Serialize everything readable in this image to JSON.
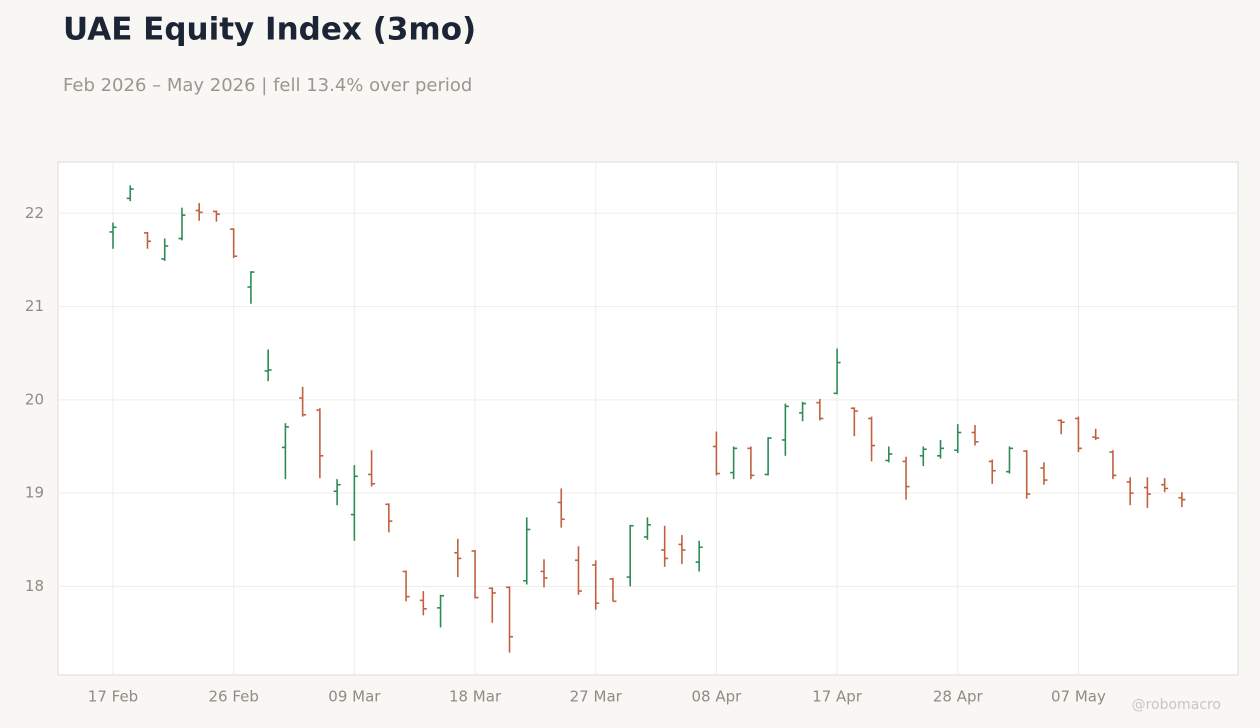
{
  "chart_data": {
    "type": "ohlc",
    "title": "UAE Equity Index (3mo)",
    "subtitle": "Feb 2026 – May 2026 | fell 13.4% over period",
    "watermark": "@robomacro",
    "up_color": "#2e8b57",
    "down_color": "#c0623f",
    "grid": true,
    "categories": [
      "17 Feb",
      null,
      null,
      null,
      null,
      null,
      null,
      "26 Feb",
      null,
      null,
      null,
      null,
      null,
      null,
      "09 Mar",
      null,
      null,
      null,
      null,
      null,
      null,
      "18 Mar",
      null,
      null,
      null,
      null,
      null,
      null,
      "27 Mar",
      null,
      null,
      null,
      null,
      null,
      null,
      "08 Apr",
      null,
      null,
      null,
      null,
      null,
      null,
      "17 Apr",
      null,
      null,
      null,
      null,
      null,
      null,
      "28 Apr",
      null,
      null,
      null,
      null,
      null,
      null,
      "07 May",
      null,
      null,
      null,
      null,
      null,
      null
    ],
    "open": [
      21.8,
      22.16,
      21.79,
      21.51,
      21.73,
      22.03,
      22.02,
      21.83,
      21.21,
      20.31,
      19.49,
      20.02,
      19.89,
      19.02,
      18.77,
      19.2,
      18.88,
      18.16,
      17.85,
      17.77,
      18.36,
      18.38,
      17.98,
      17.99,
      18.06,
      18.16,
      18.9,
      18.28,
      18.23,
      18.08,
      18.1,
      18.53,
      18.39,
      18.45,
      18.26,
      19.5,
      19.22,
      19.48,
      19.2,
      19.57,
      19.86,
      19.97,
      20.07,
      19.91,
      19.8,
      19.35,
      19.34,
      19.4,
      19.4,
      19.46,
      19.65,
      19.34,
      19.23,
      19.45,
      19.27,
      19.78,
      19.8,
      19.6,
      19.44,
      19.12,
      19.06,
      19.09,
      18.95
    ],
    "high": [
      21.9,
      22.3,
      21.8,
      21.73,
      22.06,
      22.11,
      22.03,
      21.84,
      21.38,
      20.54,
      19.75,
      20.14,
      19.91,
      19.15,
      19.3,
      19.46,
      18.89,
      18.17,
      17.95,
      17.91,
      18.51,
      18.39,
      17.99,
      18.0,
      18.74,
      18.29,
      19.05,
      18.43,
      18.28,
      18.09,
      18.66,
      18.74,
      18.65,
      18.55,
      18.49,
      19.66,
      19.5,
      19.5,
      19.6,
      19.96,
      19.98,
      20.01,
      20.55,
      19.92,
      19.82,
      19.5,
      19.39,
      19.5,
      19.57,
      19.74,
      19.73,
      19.36,
      19.5,
      19.46,
      19.33,
      19.79,
      19.82,
      19.69,
      19.46,
      19.17,
      19.17,
      19.16,
      19.01
    ],
    "low": [
      21.62,
      22.13,
      21.62,
      21.49,
      21.71,
      21.92,
      21.91,
      21.52,
      21.03,
      20.2,
      19.15,
      19.82,
      19.16,
      18.87,
      18.49,
      19.07,
      18.58,
      17.84,
      17.69,
      17.56,
      18.1,
      17.87,
      17.61,
      17.29,
      18.02,
      17.99,
      18.63,
      17.91,
      17.75,
      17.84,
      18.0,
      18.5,
      18.21,
      18.24,
      18.16,
      19.19,
      19.15,
      19.15,
      19.19,
      19.4,
      19.77,
      19.78,
      20.06,
      19.61,
      19.34,
      19.33,
      18.93,
      19.29,
      19.37,
      19.43,
      19.51,
      19.1,
      19.21,
      18.94,
      19.09,
      19.63,
      19.44,
      19.57,
      19.15,
      18.87,
      18.84,
      19.01,
      18.85
    ],
    "close": [
      21.85,
      22.26,
      21.7,
      21.65,
      21.98,
      22.01,
      21.99,
      21.54,
      21.37,
      20.32,
      19.71,
      19.84,
      19.4,
      19.09,
      19.18,
      19.1,
      18.7,
      17.89,
      17.76,
      17.9,
      18.3,
      17.88,
      17.93,
      17.46,
      18.61,
      18.09,
      18.72,
      17.95,
      17.82,
      17.84,
      18.65,
      18.66,
      18.3,
      18.39,
      18.42,
      19.21,
      19.48,
      19.19,
      19.59,
      19.93,
      19.96,
      19.8,
      20.4,
      19.88,
      19.51,
      19.42,
      19.07,
      19.47,
      19.48,
      19.65,
      19.55,
      19.24,
      19.48,
      18.99,
      19.14,
      19.76,
      19.48,
      19.59,
      19.19,
      19.0,
      18.99,
      19.05,
      18.93
    ],
    "ylim": [
      17.05,
      22.55
    ],
    "yticks": [
      18,
      19,
      20,
      21,
      22
    ]
  }
}
